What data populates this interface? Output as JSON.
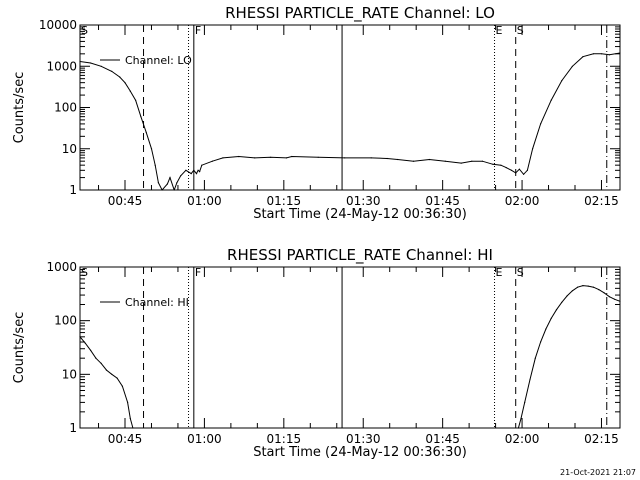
{
  "chart_data": [
    {
      "type": "line",
      "title": "RHESSI PARTICLE_RATE Channel: LO",
      "xlabel": "Start Time (24-May-12 00:36:30)",
      "ylabel": "Counts/sec",
      "yscale": "log",
      "ylim": [
        1,
        10000
      ],
      "xlim_minutes_after_start": [
        0,
        102
      ],
      "yticks": [
        "1",
        "10",
        "100",
        "1000",
        "10000"
      ],
      "xticks": [
        "00:45",
        "01:00",
        "01:15",
        "01:30",
        "01:45",
        "02:00",
        "02:15"
      ],
      "xtick_minutes": [
        8.5,
        23.5,
        38.5,
        53.5,
        68.5,
        83.5,
        98.5
      ],
      "legend": "Channel: LO",
      "series": [
        {
          "name": "Channel: LO",
          "x": [
            0,
            2,
            4,
            6,
            7.5,
            8.5,
            9.5,
            10.5,
            11.5,
            12.5,
            13.5,
            14.2,
            14.8,
            15.5,
            16.5,
            17,
            17.8,
            18.3,
            19,
            20,
            21,
            21.5,
            22,
            22.3,
            22.6,
            23,
            25,
            27,
            30,
            33,
            36,
            39,
            40,
            45,
            50,
            55,
            58,
            60,
            63,
            66,
            69,
            72,
            74,
            76,
            78,
            79.5,
            80.5,
            81.5,
            82.3,
            83,
            83.8,
            84.5,
            85.5,
            87,
            89,
            91,
            93,
            95,
            97,
            98.5,
            100,
            102
          ],
          "y": [
            1300,
            1200,
            1000,
            750,
            550,
            400,
            250,
            150,
            60,
            25,
            10,
            4,
            1.5,
            0.8,
            1.4,
            2,
            0.7,
            1.5,
            2.2,
            3,
            2.5,
            3,
            2.5,
            3,
            2.8,
            4,
            5,
            6,
            6.5,
            6,
            6.2,
            6,
            6.5,
            6.2,
            6,
            6,
            5.8,
            5.5,
            5,
            5.5,
            5,
            4.5,
            5,
            5,
            4.2,
            4,
            3.5,
            3,
            2.6,
            3.2,
            2.4,
            3,
            10,
            40,
            150,
            450,
            1000,
            1700,
            2000,
            2000,
            1900,
            2100
          ]
        }
      ],
      "markers": [
        {
          "label": "S",
          "minute": 0,
          "style": "solid"
        },
        {
          "label": "",
          "minute": 12,
          "style": "dashed"
        },
        {
          "label": "",
          "minute": 20.5,
          "style": "dotted"
        },
        {
          "label": "F",
          "minute": 21.5,
          "style": "solid"
        },
        {
          "label": "",
          "minute": 49.5,
          "style": "solid"
        },
        {
          "label": "E",
          "minute": 78.3,
          "style": "dotted"
        },
        {
          "label": "S",
          "minute": 82.3,
          "style": "dashed"
        },
        {
          "label": "",
          "minute": 99.5,
          "style": "dashdot"
        }
      ]
    },
    {
      "type": "line",
      "title": "RHESSI PARTICLE_RATE Channel: HI",
      "xlabel": "Start Time (24-May-12 00:36:30)",
      "ylabel": "Counts/sec",
      "yscale": "log",
      "ylim": [
        1,
        1000
      ],
      "xlim_minutes_after_start": [
        0,
        102
      ],
      "yticks": [
        "1",
        "10",
        "100",
        "1000"
      ],
      "xticks": [
        "00:45",
        "01:00",
        "01:15",
        "01:30",
        "01:45",
        "02:00",
        "02:15"
      ],
      "xtick_minutes": [
        8.5,
        23.5,
        38.5,
        53.5,
        68.5,
        83.5,
        98.5
      ],
      "legend": "Channel: HI",
      "series": [
        {
          "name": "Channel: HI",
          "x": [
            0,
            1,
            2,
            3,
            4,
            5,
            6,
            7,
            8,
            9,
            9.5,
            10
          ],
          "y": [
            50,
            38,
            28,
            20,
            16,
            12,
            10,
            8.5,
            6,
            3,
            1.5,
            0.8
          ]
        },
        {
          "name": "Channel: HI",
          "x": [
            82.8,
            83.3,
            84,
            85,
            86,
            87,
            88,
            89,
            90,
            91,
            92,
            93,
            94,
            95,
            96,
            97,
            98,
            99,
            100,
            101,
            102
          ],
          "y": [
            0.8,
            1.5,
            3,
            8,
            20,
            40,
            70,
            110,
            160,
            220,
            290,
            360,
            420,
            450,
            440,
            420,
            380,
            330,
            280,
            250,
            230
          ]
        }
      ],
      "markers": [
        {
          "label": "S",
          "minute": 0,
          "style": "solid"
        },
        {
          "label": "",
          "minute": 12,
          "style": "dashed"
        },
        {
          "label": "",
          "minute": 20.5,
          "style": "dotted"
        },
        {
          "label": "F",
          "minute": 21.5,
          "style": "solid"
        },
        {
          "label": "",
          "minute": 49.5,
          "style": "solid"
        },
        {
          "label": "E",
          "minute": 78.3,
          "style": "dotted"
        },
        {
          "label": "S",
          "minute": 82.3,
          "style": "dashed"
        },
        {
          "label": "",
          "minute": 99.5,
          "style": "dashdot"
        }
      ]
    }
  ],
  "footer": {
    "timestamp": "21-Oct-2021 21:07"
  }
}
